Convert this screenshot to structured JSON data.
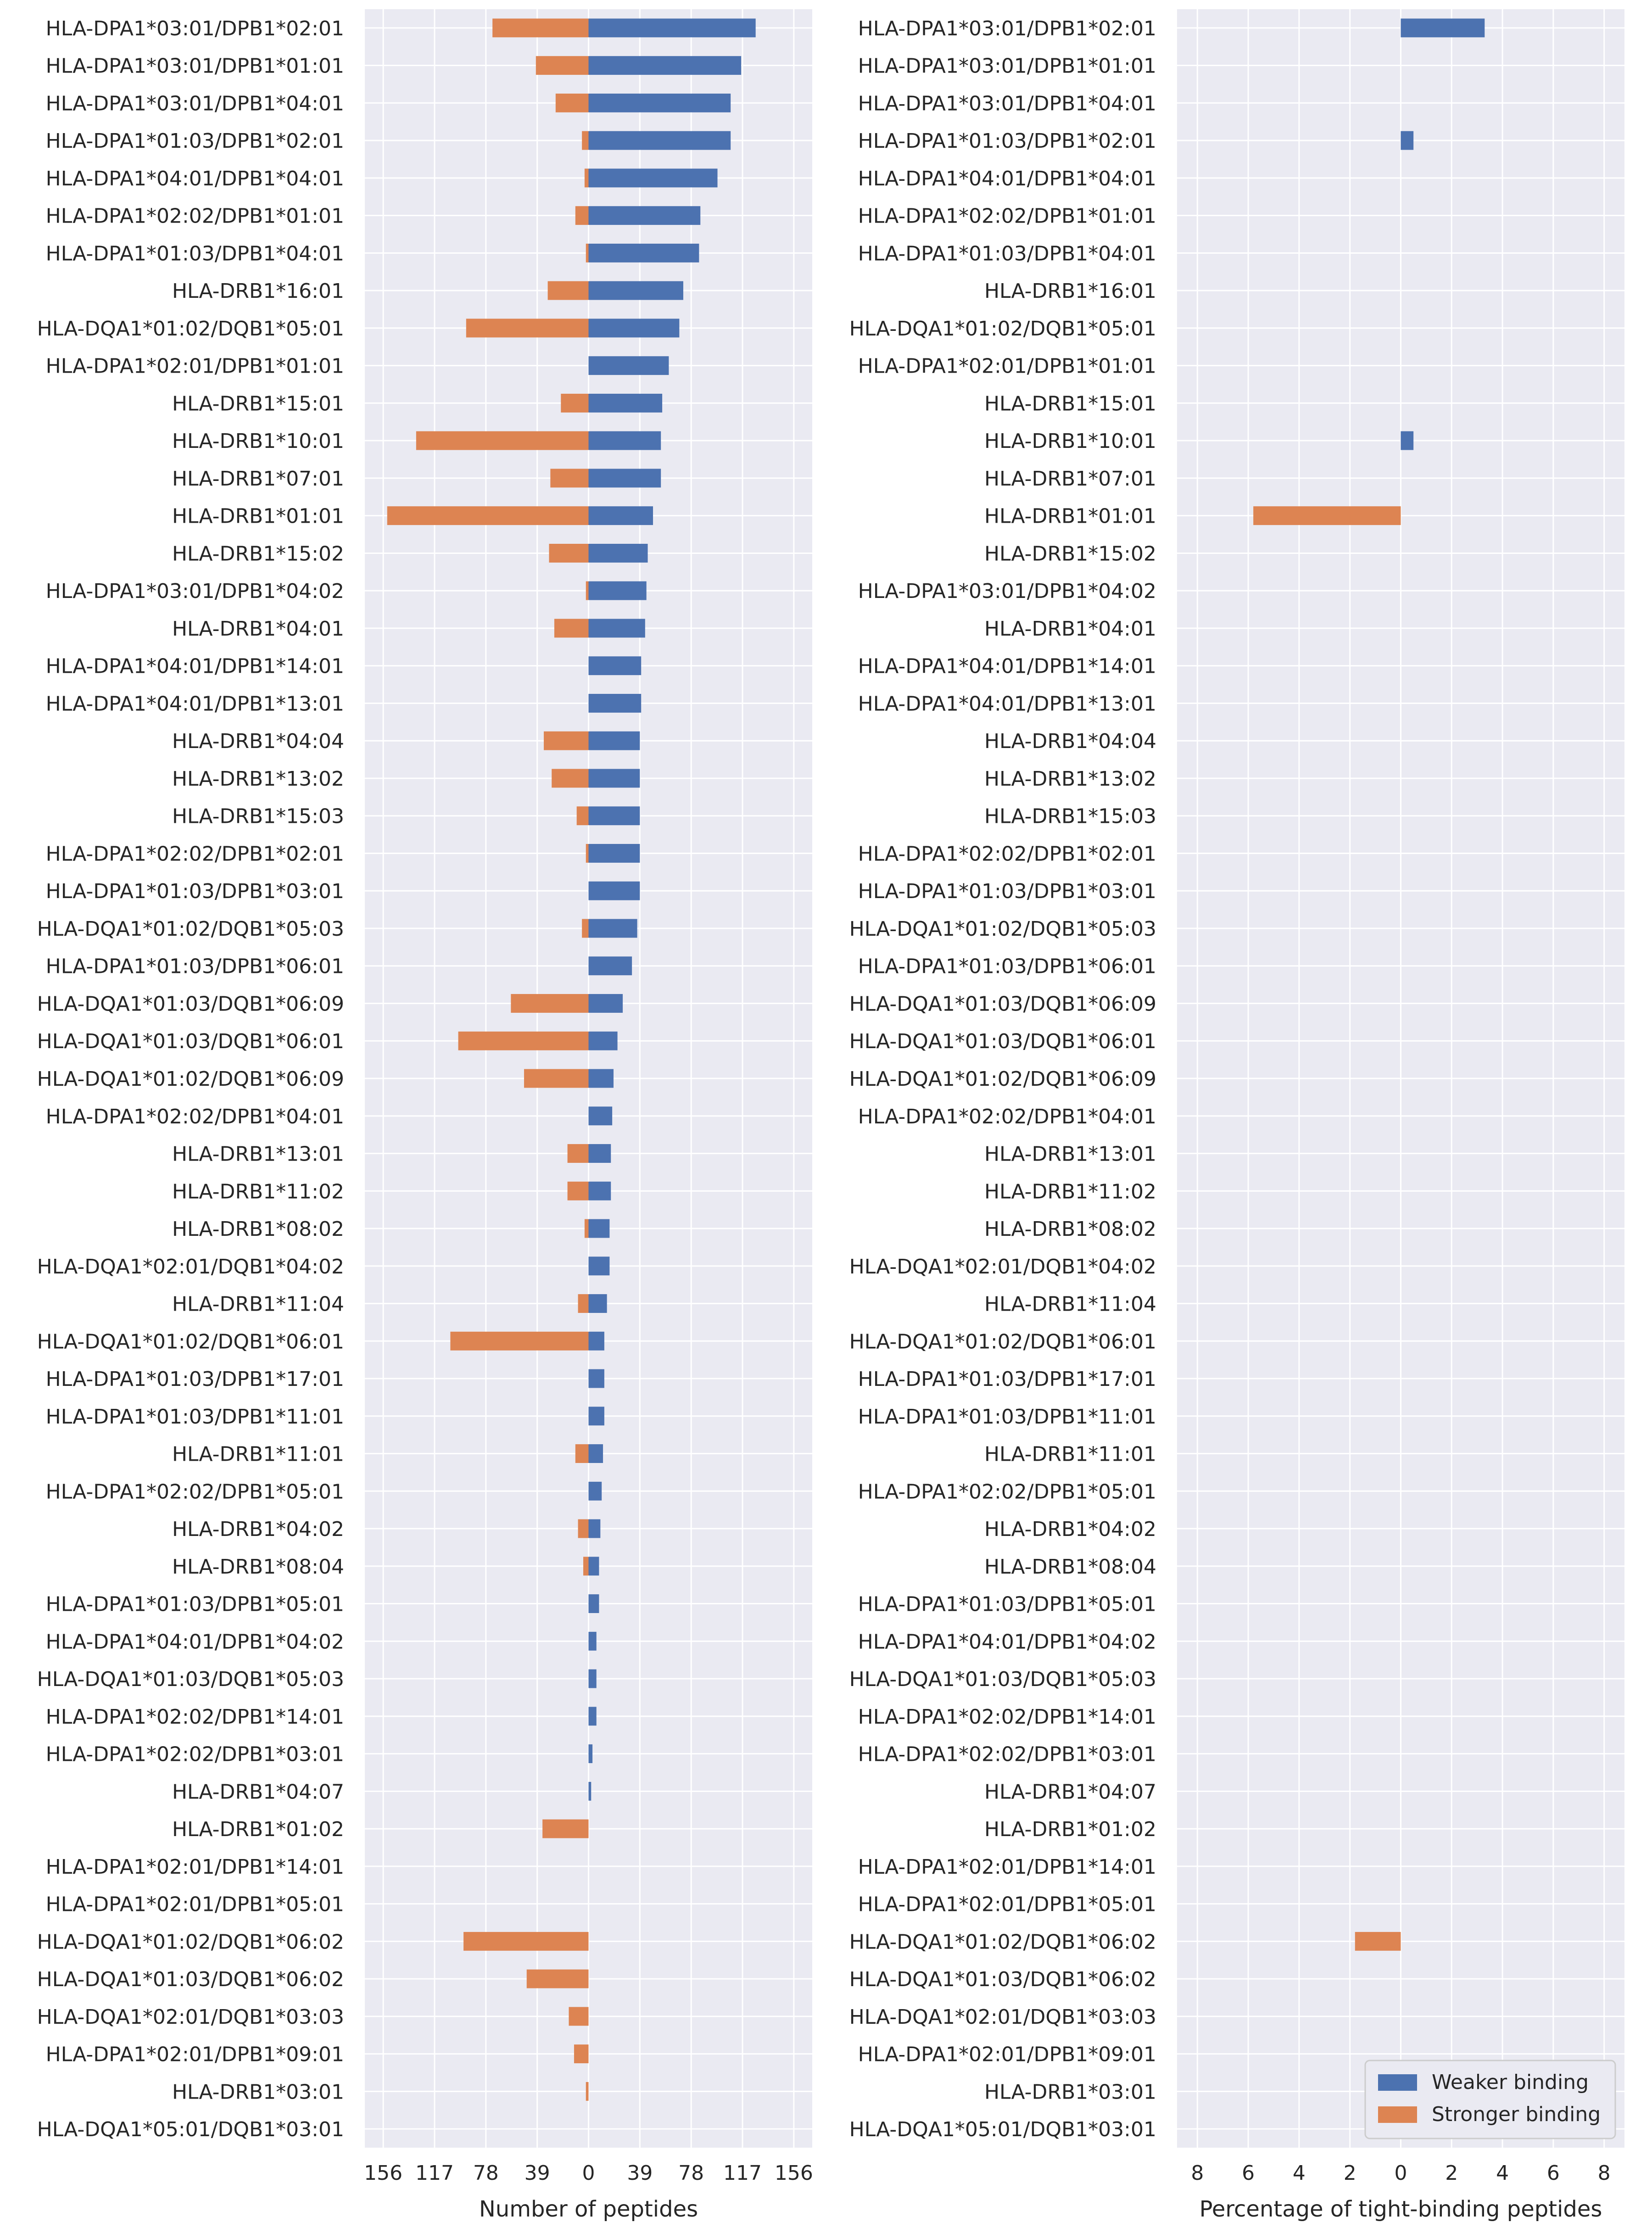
{
  "colors": {
    "weaker": "#4c72b0",
    "stronger": "#dd8452",
    "panel_bg": "#eaeaf2",
    "grid": "#ffffff",
    "text": "#262626"
  },
  "chart_data": [
    {
      "type": "bar",
      "orientation": "horizontal-diverging",
      "xlabel": "Number of peptides",
      "xlim": [
        -170,
        170
      ],
      "xticks": [
        -156,
        -117,
        -78,
        -39,
        0,
        39,
        78,
        117,
        156
      ],
      "xtick_labels": [
        "156",
        "117",
        "78",
        "39",
        "0",
        "39",
        "78",
        "117",
        "156"
      ],
      "grid": true,
      "categories": [
        "HLA-DPA1*03:01/DPB1*02:01",
        "HLA-DPA1*03:01/DPB1*01:01",
        "HLA-DPA1*03:01/DPB1*04:01",
        "HLA-DPA1*01:03/DPB1*02:01",
        "HLA-DPA1*04:01/DPB1*04:01",
        "HLA-DPA1*02:02/DPB1*01:01",
        "HLA-DPA1*01:03/DPB1*04:01",
        "HLA-DRB1*16:01",
        "HLA-DQA1*01:02/DQB1*05:01",
        "HLA-DPA1*02:01/DPB1*01:01",
        "HLA-DRB1*15:01",
        "HLA-DRB1*10:01",
        "HLA-DRB1*07:01",
        "HLA-DRB1*01:01",
        "HLA-DRB1*15:02",
        "HLA-DPA1*03:01/DPB1*04:02",
        "HLA-DRB1*04:01",
        "HLA-DPA1*04:01/DPB1*14:01",
        "HLA-DPA1*04:01/DPB1*13:01",
        "HLA-DRB1*04:04",
        "HLA-DRB1*13:02",
        "HLA-DRB1*15:03",
        "HLA-DPA1*02:02/DPB1*02:01",
        "HLA-DPA1*01:03/DPB1*03:01",
        "HLA-DQA1*01:02/DQB1*05:03",
        "HLA-DPA1*01:03/DPB1*06:01",
        "HLA-DQA1*01:03/DQB1*06:09",
        "HLA-DQA1*01:03/DQB1*06:01",
        "HLA-DQA1*01:02/DQB1*06:09",
        "HLA-DPA1*02:02/DPB1*04:01",
        "HLA-DRB1*13:01",
        "HLA-DRB1*11:02",
        "HLA-DRB1*08:02",
        "HLA-DQA1*02:01/DQB1*04:02",
        "HLA-DRB1*11:04",
        "HLA-DQA1*01:02/DQB1*06:01",
        "HLA-DPA1*01:03/DPB1*17:01",
        "HLA-DPA1*01:03/DPB1*11:01",
        "HLA-DRB1*11:01",
        "HLA-DPA1*02:02/DPB1*05:01",
        "HLA-DRB1*04:02",
        "HLA-DRB1*08:04",
        "HLA-DPA1*01:03/DPB1*05:01",
        "HLA-DPA1*04:01/DPB1*04:02",
        "HLA-DQA1*01:03/DQB1*05:03",
        "HLA-DPA1*02:02/DPB1*14:01",
        "HLA-DPA1*02:02/DPB1*03:01",
        "HLA-DRB1*04:07",
        "HLA-DRB1*01:02",
        "HLA-DPA1*02:01/DPB1*14:01",
        "HLA-DPA1*02:01/DPB1*05:01",
        "HLA-DQA1*01:02/DQB1*06:02",
        "HLA-DQA1*01:03/DQB1*06:02",
        "HLA-DQA1*02:01/DQB1*03:03",
        "HLA-DPA1*02:01/DPB1*09:01",
        "HLA-DRB1*03:01",
        "HLA-DQA1*05:01/DQB1*03:01"
      ],
      "series": [
        {
          "name": "Weaker binding",
          "direction": "right",
          "values": [
            127,
            116,
            108,
            108,
            98,
            85,
            84,
            72,
            69,
            61,
            56,
            55,
            55,
            49,
            45,
            44,
            43,
            40,
            40,
            39,
            39,
            39,
            39,
            39,
            37,
            33,
            26,
            22,
            19,
            18,
            17,
            17,
            16,
            16,
            14,
            12,
            12,
            12,
            11,
            10,
            9,
            8,
            8,
            6,
            6,
            6,
            3,
            2,
            0,
            0,
            0,
            0,
            0,
            0,
            0,
            0,
            0
          ]
        },
        {
          "name": "Stronger binding",
          "direction": "left",
          "values": [
            73,
            40,
            25,
            5,
            3,
            10,
            2,
            31,
            93,
            0,
            21,
            131,
            29,
            153,
            30,
            2,
            26,
            0,
            0,
            34,
            28,
            9,
            2,
            0,
            5,
            0,
            59,
            99,
            49,
            0,
            16,
            16,
            3,
            0,
            8,
            105,
            0,
            0,
            10,
            0,
            8,
            4,
            0,
            0,
            0,
            0,
            0,
            0,
            35,
            0,
            0,
            95,
            47,
            15,
            11,
            2,
            0
          ]
        }
      ]
    },
    {
      "type": "bar",
      "orientation": "horizontal-diverging",
      "xlabel": "Percentage of tight-binding peptides",
      "xlim": [
        -8.8,
        8.8
      ],
      "xticks": [
        -8,
        -6,
        -4,
        -2,
        0,
        2,
        4,
        6,
        8
      ],
      "xtick_labels": [
        "8",
        "6",
        "4",
        "2",
        "0",
        "2",
        "4",
        "6",
        "8"
      ],
      "grid": true,
      "legend": {
        "position": "lower-right",
        "entries": [
          "Weaker binding",
          "Stronger binding"
        ]
      },
      "series": [
        {
          "name": "Weaker binding",
          "direction": "right",
          "values_nonzero": {
            "HLA-DPA1*03:01/DPB1*02:01": 3.3,
            "HLA-DPA1*01:03/DPB1*02:01": 0.5,
            "HLA-DRB1*10:01": 0.5
          }
        },
        {
          "name": "Stronger binding",
          "direction": "left",
          "values_nonzero": {
            "HLA-DRB1*01:01": 5.8,
            "HLA-DQA1*01:02/DQB1*06:02": 1.8
          }
        }
      ]
    }
  ]
}
